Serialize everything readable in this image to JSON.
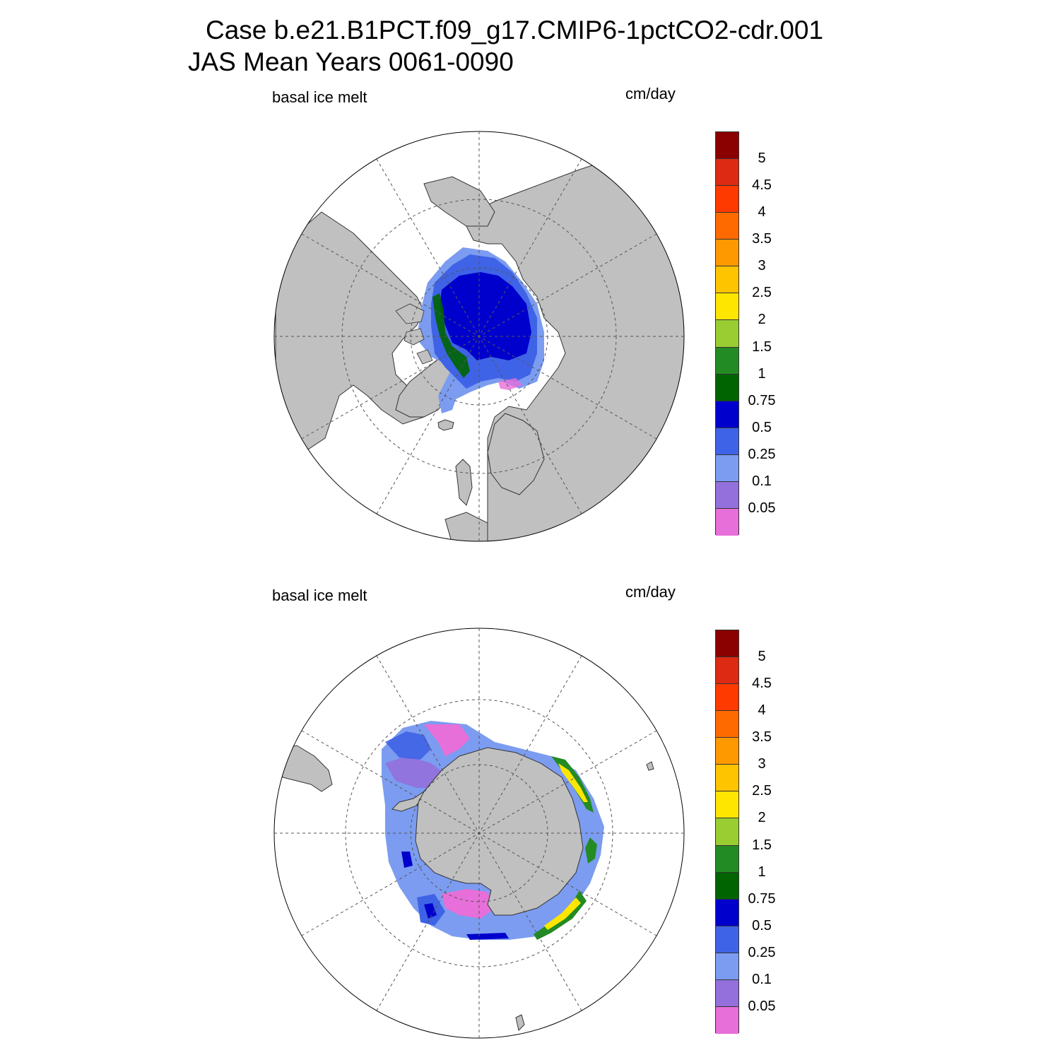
{
  "title": {
    "line1": "Case b.e21.B1PCT.f09_g17.CMIP6-1pctCO2-cdr.001",
    "line2": "JAS Mean   Years 0061-0090"
  },
  "panels": [
    {
      "id": "north",
      "variable_label": "basal ice melt",
      "units_label": "cm/day",
      "hemisphere": "north-polar-stereographic"
    },
    {
      "id": "south",
      "variable_label": "basal ice melt",
      "units_label": "cm/day",
      "hemisphere": "south-polar-stereographic"
    }
  ],
  "colorbar": {
    "levels": [
      "0.05",
      "0.1",
      "0.25",
      "0.5",
      "0.75",
      "1",
      "1.5",
      "2",
      "2.5",
      "3",
      "3.5",
      "4",
      "4.5",
      "5"
    ],
    "colors": [
      "#e76fd9",
      "#9370db",
      "#7b9cf0",
      "#3f63e6",
      "#0000cd",
      "#006400",
      "#238b23",
      "#9acd32",
      "#ffe600",
      "#ffc400",
      "#ff9900",
      "#ff6a00",
      "#ff3a00",
      "#dc2a13",
      "#8b0000"
    ]
  },
  "legend_colors": {
    "land": "#c0c0c0",
    "ocean": "#ffffff",
    "grid": "#555555"
  }
}
